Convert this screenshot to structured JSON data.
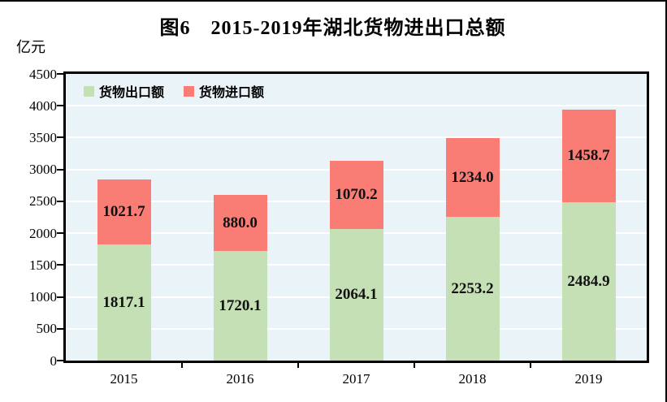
{
  "header": {
    "title": "图6　2015-2019年湖北货物进出口总额",
    "unit_label": "亿元"
  },
  "chart_data": {
    "type": "bar",
    "stacked": true,
    "title": "图6　2015-2019年湖北货物进出口总额",
    "ylabel": "亿元",
    "xlabel": "",
    "categories": [
      "2015",
      "2016",
      "2017",
      "2018",
      "2019"
    ],
    "series": [
      {
        "name": "货物出口额",
        "color": "#C5E0B4",
        "values": [
          1817.1,
          1720.1,
          2064.1,
          2253.2,
          2484.9
        ]
      },
      {
        "name": "货物进口额",
        "color": "#FA7D75",
        "values": [
          1021.7,
          880.0,
          1070.2,
          1234.0,
          1458.7
        ]
      }
    ],
    "ylim": [
      0,
      4500
    ],
    "yticks": [
      0,
      500,
      1000,
      1500,
      2000,
      2500,
      3000,
      3500,
      4000,
      4500
    ],
    "value_label_decimals": 1,
    "grid": true,
    "gridline_color": "#ffffff",
    "plot_background": "#EAF3F8",
    "frame_color": "#000000",
    "legend_position": "top-left-inside",
    "text_color": "#000000"
  }
}
